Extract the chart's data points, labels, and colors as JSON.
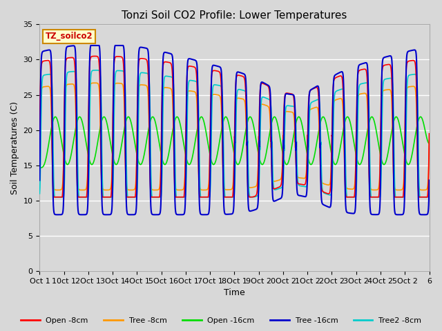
{
  "title": "Tonzi Soil CO2 Profile: Lower Temperatures",
  "xlabel": "Time",
  "ylabel": "Soil Temperatures (C)",
  "legend_label": "TZ_soilco2",
  "xlim": [
    0,
    16
  ],
  "ylim": [
    0,
    35
  ],
  "yticks": [
    0,
    5,
    10,
    15,
    20,
    25,
    30,
    35
  ],
  "xtick_labels": [
    "Oct 1",
    "10ct 1",
    "2Oct 1",
    "3Oct 1",
    "4Oct 1",
    "5Oct 1",
    "6Oct 1",
    "7Oct 1",
    "8Oct 1",
    "9Oct 2",
    "0Oct 2",
    "1Oct 2",
    "2Oct 2",
    "3Oct 2",
    "4Oct 2",
    "5Oct 2",
    "6"
  ],
  "series": {
    "Open -8cm": {
      "color": "#ff0000",
      "lw": 1.2
    },
    "Tree -8cm": {
      "color": "#ff9900",
      "lw": 1.2
    },
    "Open -16cm": {
      "color": "#00dd00",
      "lw": 1.2
    },
    "Tree -16cm": {
      "color": "#0000cc",
      "lw": 1.5
    },
    "Tree2 -8cm": {
      "color": "#00cccc",
      "lw": 1.2
    }
  },
  "fig_facecolor": "#d8d8d8",
  "ax_facecolor": "#d8d8d8",
  "grid_color": "#ffffff",
  "title_fontsize": 11,
  "axis_label_fontsize": 9,
  "tick_fontsize": 8,
  "label_box_facecolor": "#ffffcc",
  "label_box_edgecolor": "#cc8800",
  "label_text_color": "#cc0000"
}
